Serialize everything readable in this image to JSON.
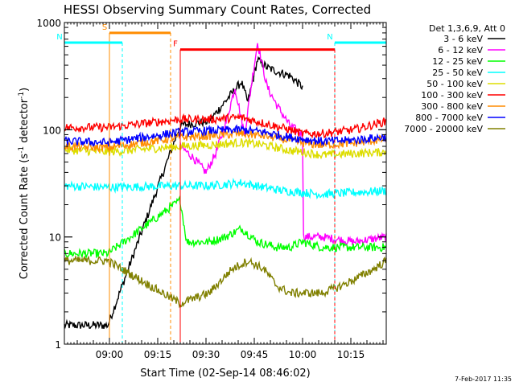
{
  "chart_data": {
    "type": "line",
    "title": "HESSI Observing Summary Count Rates, Corrected",
    "xlabel": "Start Time (02-Sep-14 08:46:02)",
    "ylabel_main": "Corrected Count Rate (s",
    "ylabel_sup1": "-1",
    "ylabel_mid": " detector",
    "ylabel_sup2": "-1",
    "ylabel_end": ")",
    "yscale": "log",
    "ylim": [
      1,
      1000
    ],
    "xlim_minutes": [
      0,
      100
    ],
    "x_ticks": [
      {
        "label": "09:00",
        "minute": 14
      },
      {
        "label": "09:15",
        "minute": 29
      },
      {
        "label": "09:30",
        "minute": 44
      },
      {
        "label": "09:45",
        "minute": 59
      },
      {
        "label": "10:00",
        "minute": 74
      },
      {
        "label": "10:15",
        "minute": 89
      }
    ],
    "y_ticks": [
      {
        "label": "1",
        "value": 1
      },
      {
        "label": "10",
        "value": 10
      },
      {
        "label": "100",
        "value": 100
      },
      {
        "label": "1000",
        "value": 1000
      }
    ],
    "legend_title": "Det 1,3,6,9, Att 0",
    "legend_position": "right",
    "series": [
      {
        "name": "3 - 6 keV",
        "color": "#000000",
        "points": [
          [
            0,
            1.5
          ],
          [
            13.5,
            1.5
          ],
          [
            36,
            110
          ],
          [
            45,
            120
          ],
          [
            51,
            200
          ],
          [
            55,
            280
          ],
          [
            57,
            180
          ],
          [
            60,
            450
          ],
          [
            63,
            380
          ],
          [
            66,
            350
          ],
          [
            70,
            320
          ],
          [
            74,
            250
          ],
          [
            100,
            null
          ]
        ]
      },
      {
        "name": "6 - 12 keV",
        "color": "#ff00ff",
        "points": [
          [
            36,
            70
          ],
          [
            40,
            55
          ],
          [
            44,
            40
          ],
          [
            47,
            60
          ],
          [
            50,
            110
          ],
          [
            53,
            250
          ],
          [
            56,
            90
          ],
          [
            58,
            250
          ],
          [
            60,
            650
          ],
          [
            63,
            250
          ],
          [
            66,
            170
          ],
          [
            70,
            110
          ],
          [
            74,
            90
          ],
          [
            74.3,
            10
          ],
          [
            80,
            10
          ],
          [
            90,
            9
          ],
          [
            100,
            10
          ]
        ]
      },
      {
        "name": "12 - 25 keV",
        "color": "#00ff00",
        "points": [
          [
            0,
            7
          ],
          [
            13.5,
            7
          ],
          [
            36,
            22
          ],
          [
            38,
            9
          ],
          [
            45,
            9
          ],
          [
            50,
            10
          ],
          [
            55,
            12
          ],
          [
            60,
            9
          ],
          [
            66,
            8
          ],
          [
            70,
            8
          ],
          [
            74,
            9
          ],
          [
            80,
            8
          ],
          [
            90,
            8
          ],
          [
            100,
            8
          ]
        ]
      },
      {
        "name": "25 - 50 keV",
        "color": "#00ffff",
        "points": [
          [
            0,
            30
          ],
          [
            13.5,
            29
          ],
          [
            36,
            30
          ],
          [
            45,
            30
          ],
          [
            55,
            32
          ],
          [
            62,
            29
          ],
          [
            68,
            27
          ],
          [
            74,
            26
          ],
          [
            80,
            25
          ],
          [
            90,
            26
          ],
          [
            100,
            27
          ]
        ]
      },
      {
        "name": "50 - 100 keV",
        "color": "#dddd00",
        "points": [
          [
            0,
            65
          ],
          [
            13.5,
            62
          ],
          [
            36,
            70
          ],
          [
            45,
            72
          ],
          [
            55,
            76
          ],
          [
            62,
            72
          ],
          [
            70,
            64
          ],
          [
            74,
            62
          ],
          [
            80,
            58
          ],
          [
            90,
            60
          ],
          [
            100,
            62
          ]
        ]
      },
      {
        "name": "100 - 300 keV",
        "color": "#ff0000",
        "points": [
          [
            0,
            105
          ],
          [
            13.5,
            105
          ],
          [
            36,
            125
          ],
          [
            45,
            125
          ],
          [
            55,
            130
          ],
          [
            62,
            115
          ],
          [
            70,
            100
          ],
          [
            74,
            92
          ],
          [
            80,
            92
          ],
          [
            90,
            100
          ],
          [
            100,
            120
          ]
        ]
      },
      {
        "name": "300 - 800 keV",
        "color": "#ff8c00",
        "points": [
          [
            0,
            70
          ],
          [
            13.5,
            68
          ],
          [
            36,
            85
          ],
          [
            45,
            88
          ],
          [
            55,
            92
          ],
          [
            62,
            88
          ],
          [
            70,
            80
          ],
          [
            74,
            75
          ],
          [
            80,
            72
          ],
          [
            90,
            75
          ],
          [
            100,
            82
          ]
        ]
      },
      {
        "name": "800 - 7000 keV",
        "color": "#0000ff",
        "points": [
          [
            0,
            78
          ],
          [
            13.5,
            76
          ],
          [
            36,
            95
          ],
          [
            45,
            98
          ],
          [
            55,
            100
          ],
          [
            62,
            95
          ],
          [
            70,
            85
          ],
          [
            74,
            82
          ],
          [
            80,
            78
          ],
          [
            90,
            80
          ],
          [
            100,
            86
          ]
        ]
      },
      {
        "name": "7000 - 20000 keV",
        "color": "#808000",
        "points": [
          [
            0,
            6
          ],
          [
            13.5,
            6
          ],
          [
            36,
            2.4
          ],
          [
            45,
            3
          ],
          [
            52,
            5
          ],
          [
            57,
            6
          ],
          [
            62,
            5
          ],
          [
            66,
            3.5
          ],
          [
            70,
            3
          ],
          [
            74,
            3
          ],
          [
            80,
            3
          ],
          [
            86,
            3.5
          ],
          [
            90,
            4
          ],
          [
            96,
            5
          ],
          [
            100,
            6
          ]
        ]
      }
    ],
    "intervals": [
      {
        "label": "S",
        "color": "#ff8c00",
        "style": "solid",
        "y": 800,
        "start": 14,
        "end": 33
      },
      {
        "label": "N",
        "color": "#00ffff",
        "style": "dashed",
        "y": 650,
        "start": 0,
        "end": 18
      },
      {
        "label": "N",
        "color": "#00ffff",
        "style": "dashed",
        "y": 650,
        "start": 84,
        "end": 102
      },
      {
        "label": "F",
        "color": "#ff0000",
        "style": "solid",
        "y": 560,
        "start": 36,
        "end": 84
      }
    ],
    "footer": "7-Feb-2017 11:35"
  }
}
